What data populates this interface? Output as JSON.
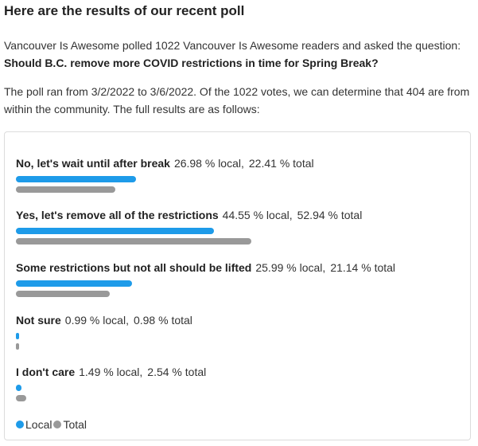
{
  "heading": "Here are the results of our recent poll",
  "intro": "Vancouver Is Awesome polled 1022 Vancouver Is Awesome readers and asked the question:",
  "question": "Should B.C. remove more COVID restrictions in time for Spring Break?",
  "summary": "The poll ran from 3/2/2022 to 3/6/2022. Of the 1022 votes, we can determine that 404 are from within the community. The full results are as follows:",
  "colors": {
    "local": "#1e9be9",
    "total": "#999999"
  },
  "chart_data": {
    "type": "bar",
    "orientation": "horizontal",
    "categories": [
      "No, let's wait until after break",
      "Yes, let's remove all of the restrictions",
      "Some restrictions but not all should be lifted",
      "Not sure",
      "I don't care"
    ],
    "series": [
      {
        "name": "Local",
        "values": [
          26.98,
          44.55,
          25.99,
          0.99,
          1.49
        ]
      },
      {
        "name": "Total",
        "values": [
          22.41,
          52.94,
          21.14,
          0.98,
          2.54
        ]
      }
    ],
    "value_labels": [
      {
        "local": "26.98 % local,",
        "total": "22.41 % total"
      },
      {
        "local": "44.55 % local,",
        "total": "52.94 % total"
      },
      {
        "local": "25.99 % local,",
        "total": "21.14 % total"
      },
      {
        "local": "0.99 % local,",
        "total": "0.98 % total"
      },
      {
        "local": "1.49 % local,",
        "total": "2.54 % total"
      }
    ],
    "legend": [
      "Local",
      "Total"
    ],
    "legend_position": "bottom-left",
    "xlim": [
      0,
      100
    ]
  }
}
